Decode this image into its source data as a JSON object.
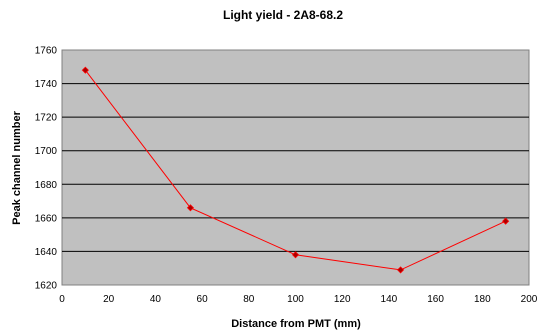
{
  "chart_data": {
    "type": "line",
    "title": "Light yield - 2A8-68.2",
    "xlabel": "Distance from PMT (mm)",
    "ylabel": "Peak channel number",
    "xlim": [
      0,
      200
    ],
    "ylim": [
      1620,
      1760
    ],
    "x_ticks": [
      0,
      20,
      40,
      60,
      80,
      100,
      120,
      140,
      160,
      180,
      200
    ],
    "y_ticks": [
      1620,
      1640,
      1660,
      1680,
      1700,
      1720,
      1740,
      1760
    ],
    "grid": true,
    "legend": "none",
    "series": [
      {
        "x": [
          10,
          55,
          100,
          145,
          190
        ],
        "y": [
          1748,
          1666,
          1638,
          1629,
          1658
        ]
      }
    ]
  },
  "colors": {
    "plot_background": "#c0c0c0",
    "gridline": "#000000",
    "line": "#ff0000",
    "marker": "#aa0000"
  }
}
